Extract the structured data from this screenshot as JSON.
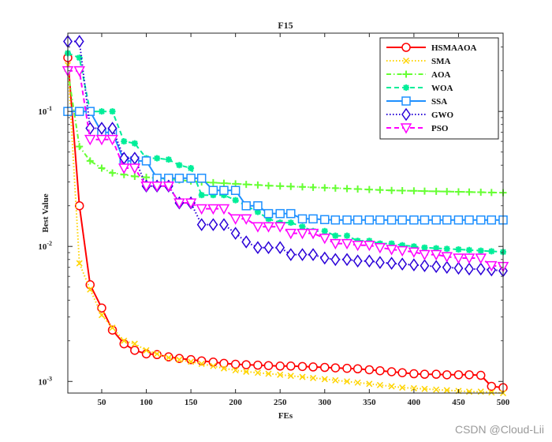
{
  "watermark": "CSDN @Cloud-Lii",
  "chart_data": {
    "type": "line",
    "title": "F15",
    "xlabel": "FEs",
    "ylabel": "Best Value",
    "xlim": [
      12,
      500
    ],
    "ylim": [
      0.00082,
      0.38
    ],
    "yscale": "log",
    "grid": false,
    "legend_position": "top-right",
    "x_ticks": [
      50,
      100,
      150,
      200,
      250,
      300,
      350,
      400,
      450,
      500
    ],
    "y_ticks": [
      {
        "value": 0.001,
        "base": "10",
        "exp": "-3"
      },
      {
        "value": 0.01,
        "base": "10",
        "exp": "-2"
      },
      {
        "value": 0.1,
        "base": "10",
        "exp": "-1"
      }
    ],
    "series": [
      {
        "name": "HSMAAOA",
        "color": "#ff0000",
        "dash": "solid",
        "marker": "circle",
        "marker_fill": "none",
        "x": [
          12,
          25,
          37,
          50,
          62,
          75,
          87,
          100,
          112,
          125,
          137,
          150,
          162,
          175,
          187,
          200,
          212,
          225,
          237,
          250,
          262,
          275,
          287,
          300,
          312,
          325,
          337,
          350,
          362,
          375,
          387,
          400,
          412,
          425,
          437,
          450,
          462,
          475,
          487,
          500
        ],
        "y": [
          0.25,
          0.02,
          0.0052,
          0.0035,
          0.0024,
          0.0019,
          0.0017,
          0.0016,
          0.00158,
          0.00152,
          0.00148,
          0.00145,
          0.00142,
          0.00139,
          0.00136,
          0.00134,
          0.00133,
          0.00132,
          0.00131,
          0.0013,
          0.0013,
          0.00129,
          0.00128,
          0.00127,
          0.00126,
          0.00125,
          0.00124,
          0.00122,
          0.0012,
          0.00118,
          0.00116,
          0.00114,
          0.00113,
          0.00113,
          0.00112,
          0.00112,
          0.00112,
          0.00111,
          0.00092,
          0.0009
        ]
      },
      {
        "name": "SMA",
        "color": "#ffd400",
        "dash": "dotted",
        "marker": "x",
        "marker_fill": "none",
        "x": [
          12,
          25,
          37,
          50,
          62,
          75,
          87,
          100,
          112,
          125,
          137,
          150,
          162,
          175,
          187,
          200,
          212,
          225,
          237,
          250,
          262,
          275,
          287,
          300,
          312,
          325,
          337,
          350,
          362,
          375,
          387,
          400,
          412,
          425,
          437,
          450,
          462,
          475,
          487,
          500
        ],
        "y": [
          0.22,
          0.0075,
          0.0048,
          0.0031,
          0.0025,
          0.002,
          0.0019,
          0.0017,
          0.0016,
          0.0015,
          0.00145,
          0.0014,
          0.00135,
          0.0013,
          0.00125,
          0.00121,
          0.00118,
          0.00116,
          0.00114,
          0.00112,
          0.0011,
          0.00108,
          0.00106,
          0.00104,
          0.00102,
          0.001,
          0.00098,
          0.00096,
          0.00094,
          0.00092,
          0.0009,
          0.00089,
          0.00088,
          0.00087,
          0.00086,
          0.00085,
          0.00084,
          0.00084,
          0.00083,
          0.00082
        ]
      },
      {
        "name": "AOA",
        "color": "#66ff33",
        "dash": "dashdot",
        "marker": "plus",
        "marker_fill": "none",
        "x": [
          12,
          25,
          37,
          50,
          62,
          75,
          87,
          100,
          112,
          125,
          137,
          150,
          162,
          175,
          187,
          200,
          212,
          225,
          237,
          250,
          262,
          275,
          287,
          300,
          312,
          325,
          337,
          350,
          362,
          375,
          387,
          400,
          412,
          425,
          437,
          450,
          462,
          475,
          487,
          500
        ],
        "y": [
          0.2,
          0.055,
          0.043,
          0.038,
          0.035,
          0.034,
          0.033,
          0.0325,
          0.032,
          0.0315,
          0.031,
          0.0305,
          0.03,
          0.0297,
          0.0294,
          0.0291,
          0.0288,
          0.0285,
          0.0282,
          0.028,
          0.0278,
          0.0276,
          0.0274,
          0.0272,
          0.027,
          0.0268,
          0.0266,
          0.0264,
          0.0262,
          0.026,
          0.0259,
          0.0258,
          0.0257,
          0.0256,
          0.0255,
          0.0254,
          0.0253,
          0.0252,
          0.0251,
          0.025
        ]
      },
      {
        "name": "WOA",
        "color": "#00ee99",
        "dash": "dashed",
        "marker": "star",
        "marker_fill": "#00ee99",
        "x": [
          12,
          25,
          37,
          50,
          62,
          75,
          87,
          100,
          112,
          125,
          137,
          150,
          162,
          175,
          187,
          200,
          212,
          225,
          237,
          250,
          262,
          275,
          287,
          300,
          312,
          325,
          337,
          350,
          362,
          375,
          387,
          400,
          412,
          425,
          437,
          450,
          462,
          475,
          487,
          500
        ],
        "y": [
          0.27,
          0.25,
          0.1,
          0.1,
          0.1,
          0.06,
          0.058,
          0.045,
          0.045,
          0.044,
          0.04,
          0.038,
          0.024,
          0.024,
          0.024,
          0.022,
          0.02,
          0.018,
          0.016,
          0.015,
          0.015,
          0.014,
          0.013,
          0.013,
          0.012,
          0.012,
          0.011,
          0.011,
          0.0105,
          0.0105,
          0.0102,
          0.01,
          0.0098,
          0.0097,
          0.0096,
          0.0095,
          0.0094,
          0.0093,
          0.0092,
          0.0091
        ]
      },
      {
        "name": "SSA",
        "color": "#1e90ff",
        "dash": "solid",
        "marker": "square",
        "marker_fill": "none",
        "x": [
          12,
          25,
          37,
          50,
          62,
          75,
          87,
          100,
          112,
          125,
          137,
          150,
          162,
          175,
          187,
          200,
          212,
          225,
          237,
          250,
          262,
          275,
          287,
          300,
          312,
          325,
          337,
          350,
          362,
          375,
          387,
          400,
          412,
          425,
          437,
          450,
          462,
          475,
          487,
          500
        ],
        "y": [
          0.1,
          0.1,
          0.1,
          0.07,
          0.07,
          0.043,
          0.043,
          0.043,
          0.032,
          0.032,
          0.032,
          0.032,
          0.032,
          0.026,
          0.026,
          0.026,
          0.02,
          0.02,
          0.0175,
          0.0175,
          0.0175,
          0.016,
          0.016,
          0.0158,
          0.0157,
          0.0157,
          0.0157,
          0.0157,
          0.0157,
          0.0157,
          0.0157,
          0.0157,
          0.0157,
          0.0157,
          0.0157,
          0.0157,
          0.0157,
          0.0157,
          0.0157,
          0.0157
        ]
      },
      {
        "name": "GWO",
        "color": "#2a00d8",
        "dash": "dotted",
        "marker": "diamond",
        "marker_fill": "none",
        "x": [
          12,
          25,
          37,
          50,
          62,
          75,
          87,
          100,
          112,
          125,
          137,
          150,
          162,
          175,
          187,
          200,
          212,
          225,
          237,
          250,
          262,
          275,
          287,
          300,
          312,
          325,
          337,
          350,
          362,
          375,
          387,
          400,
          412,
          425,
          437,
          450,
          462,
          475,
          487,
          500
        ],
        "y": [
          0.33,
          0.33,
          0.075,
          0.075,
          0.075,
          0.045,
          0.045,
          0.028,
          0.028,
          0.028,
          0.021,
          0.021,
          0.0145,
          0.0145,
          0.0145,
          0.0125,
          0.0108,
          0.0098,
          0.0098,
          0.0098,
          0.0087,
          0.0087,
          0.0087,
          0.0082,
          0.008,
          0.008,
          0.0078,
          0.0078,
          0.0076,
          0.0075,
          0.0074,
          0.0073,
          0.0072,
          0.0071,
          0.007,
          0.0069,
          0.0068,
          0.0068,
          0.0067,
          0.0066
        ]
      },
      {
        "name": "PSO",
        "color": "#ff00ff",
        "dash": "dashed",
        "marker": "triangle-down",
        "marker_fill": "none",
        "x": [
          12,
          25,
          37,
          50,
          62,
          75,
          87,
          100,
          112,
          125,
          137,
          150,
          162,
          175,
          187,
          200,
          212,
          225,
          237,
          250,
          262,
          275,
          287,
          300,
          312,
          325,
          337,
          350,
          362,
          375,
          387,
          400,
          412,
          425,
          437,
          450,
          462,
          475,
          487,
          500
        ],
        "y": [
          0.2,
          0.2,
          0.062,
          0.062,
          0.062,
          0.038,
          0.038,
          0.028,
          0.028,
          0.028,
          0.021,
          0.021,
          0.019,
          0.019,
          0.019,
          0.016,
          0.016,
          0.014,
          0.014,
          0.014,
          0.0125,
          0.0125,
          0.0125,
          0.0115,
          0.0105,
          0.0105,
          0.0102,
          0.0102,
          0.0098,
          0.0095,
          0.0093,
          0.0091,
          0.0087,
          0.0087,
          0.0084,
          0.0082,
          0.0082,
          0.0082,
          0.0072,
          0.0071
        ]
      }
    ]
  }
}
